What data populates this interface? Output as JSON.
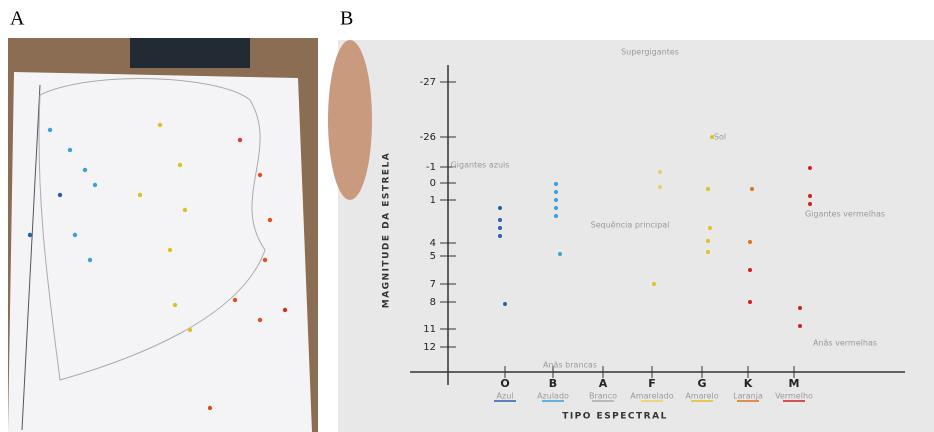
{
  "panels": [
    {
      "label": "A"
    },
    {
      "label": "B",
      "y_axis_label": "MAGNITUDE DA ESTRELA",
      "x_axis_label": "TIPO ESPECTRAL",
      "y_ticks": [
        "-27",
        "-26",
        "-1",
        "0",
        "1",
        "4",
        "5",
        "7",
        "8",
        "11",
        "12"
      ],
      "spectral_classes": [
        {
          "class": "O",
          "color_name": "Azul"
        },
        {
          "class": "B",
          "color_name": "Azulado"
        },
        {
          "class": "A",
          "color_name": "Branco"
        },
        {
          "class": "F",
          "color_name": "Amarelado"
        },
        {
          "class": "G",
          "color_name": "Amarelo"
        },
        {
          "class": "K",
          "color_name": "Laranja"
        },
        {
          "class": "M",
          "color_name": "Vermelho"
        }
      ],
      "annotations": [
        "Supergigantes",
        "Gigantes azuis",
        "Sequência principal",
        "Gigantes vermelhas",
        "Anãs brancas",
        "Anãs vermelhas",
        "Sol"
      ]
    }
  ]
}
